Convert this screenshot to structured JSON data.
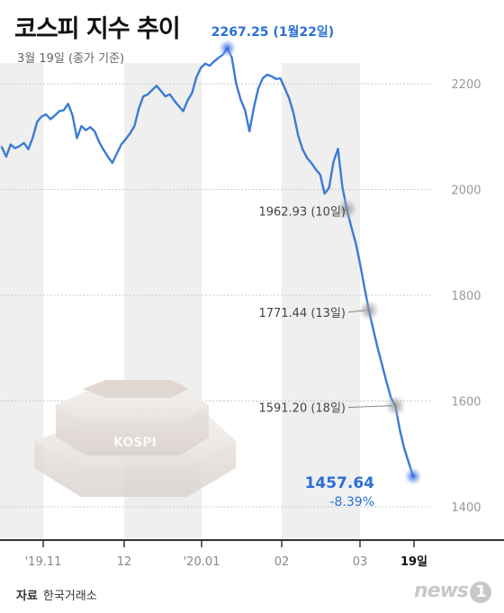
{
  "header": {
    "title": "코스피 지수 추이",
    "subtitle": "3월 19일 (종가 기준)"
  },
  "source": {
    "label": "자료",
    "value": "한국거래소"
  },
  "logo": {
    "text": "news",
    "badge": "1"
  },
  "kospi_label": "KOSPI",
  "chart_data": {
    "type": "line",
    "title": "코스피 지수 추이",
    "subtitle": "3월 19일 (종가 기준)",
    "x_tick_labels": [
      "'19.11",
      "12",
      "'20.01",
      "02",
      "03",
      "19일"
    ],
    "y_tick_labels": [
      "1400",
      "1600",
      "1800",
      "2000",
      "2200"
    ],
    "ylim": [
      1330,
      2330
    ],
    "grid": true,
    "line_color": "#3a7bd5",
    "series": [
      {
        "values": [
          2080,
          2062,
          2085,
          2078,
          2082,
          2088,
          2076,
          2098,
          2128,
          2138,
          2142,
          2133,
          2140,
          2148,
          2150,
          2162,
          2140,
          2097,
          2120,
          2112,
          2118,
          2110,
          2090,
          2075,
          2062,
          2050,
          2068,
          2085,
          2095,
          2106,
          2120,
          2153,
          2176,
          2180,
          2188,
          2196,
          2186,
          2176,
          2180,
          2168,
          2158,
          2148,
          2168,
          2182,
          2212,
          2230,
          2238,
          2234,
          2242,
          2249,
          2255,
          2267,
          2250,
          2200,
          2170,
          2150,
          2110,
          2155,
          2191,
          2210,
          2217,
          2214,
          2209,
          2210,
          2191,
          2172,
          2143,
          2103,
          2076,
          2060,
          2050,
          2038,
          2028,
          1992,
          2003,
          2052,
          2077,
          2005,
          1962.93,
          1930,
          1900,
          1860,
          1815,
          1771.44,
          1735,
          1700,
          1668,
          1636,
          1606,
          1591.2,
          1545,
          1510,
          1484,
          1457.64
        ],
        "points": [
          {
            "label": "2267.25 (1월22일)",
            "value": 2267.25,
            "highlight": true
          },
          {
            "label": "1962.93 (10일)",
            "value": 1962.93
          },
          {
            "label": "1771.44 (13일)",
            "value": 1771.44
          },
          {
            "label": "1591.20 (18일)",
            "value": 1591.2
          },
          {
            "label": "1457.64",
            "value": 1457.64,
            "highlight": true,
            "change": "-8.39%"
          }
        ]
      }
    ]
  }
}
